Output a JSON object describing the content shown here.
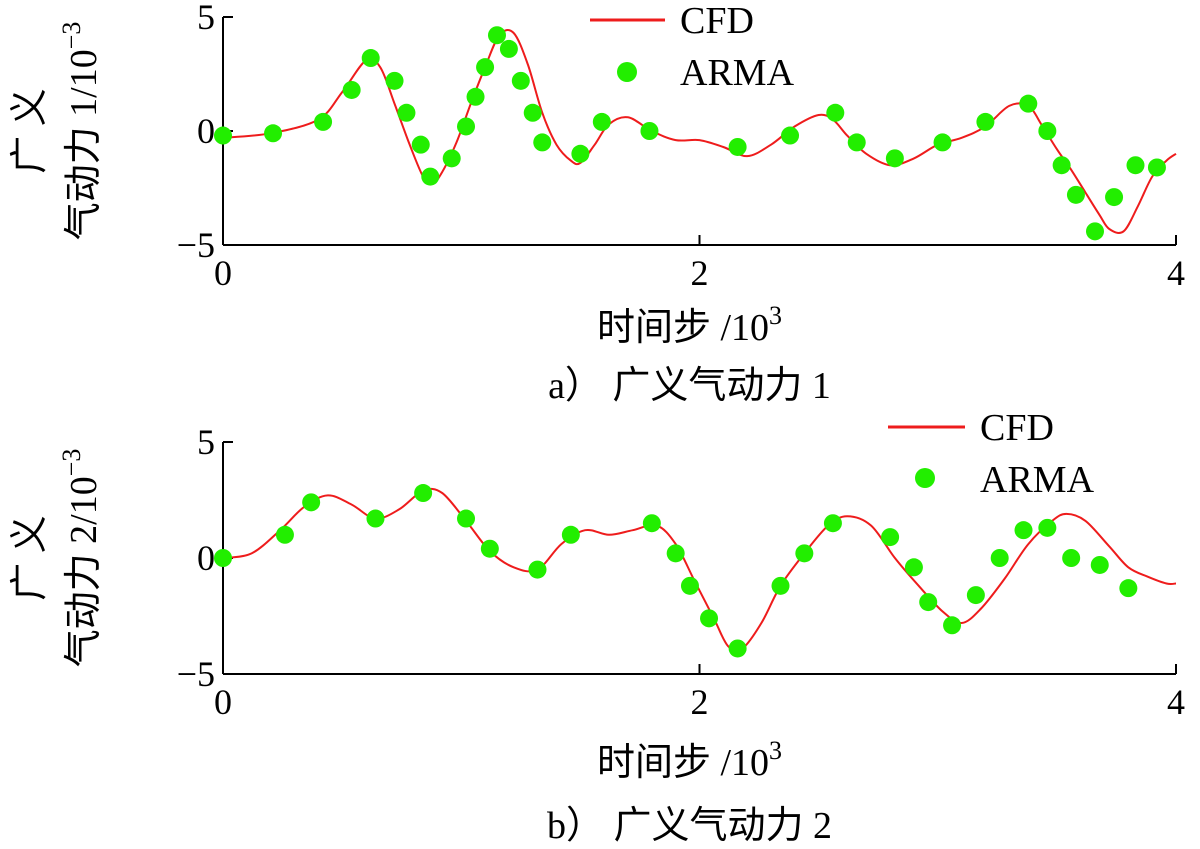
{
  "chart_data": [
    {
      "type": "line",
      "caption": "a） 广义气动力 1",
      "xlabel": "时间步 /10",
      "xlabel_exp": "3",
      "ylabel_line1": "广 义",
      "ylabel_line2": "气动力 1/10",
      "ylabel_exp": "−3",
      "xlim": [
        0,
        4
      ],
      "ylim": [
        -5,
        5
      ],
      "xticks": [
        0,
        2,
        4
      ],
      "yticks": [
        5,
        0,
        -5
      ],
      "xtick_labels": [
        "0",
        "2",
        "4"
      ],
      "ytick_labels": [
        "5",
        "0",
        "−5"
      ],
      "legend_position": "top-center",
      "series": [
        {
          "name": "CFD",
          "kind": "line",
          "x": [
            0,
            0.2,
            0.4,
            0.5,
            0.6,
            0.66,
            0.72,
            0.78,
            0.84,
            0.88,
            0.92,
            0.98,
            1.04,
            1.1,
            1.16,
            1.22,
            1.28,
            1.34,
            1.4,
            1.46,
            1.5,
            1.56,
            1.62,
            1.7,
            1.8,
            1.9,
            2.0,
            2.1,
            2.2,
            2.3,
            2.4,
            2.5,
            2.56,
            2.62,
            2.7,
            2.8,
            2.9,
            3.0,
            3.1,
            3.2,
            3.3,
            3.38,
            3.44,
            3.5,
            3.56,
            3.62,
            3.68,
            3.72,
            3.78,
            3.84,
            3.9,
            3.96,
            4.0
          ],
          "y": [
            -0.3,
            -0.1,
            0.5,
            1.7,
            3.1,
            2.8,
            1.2,
            -0.5,
            -2.0,
            -2.3,
            -1.8,
            -0.5,
            1.2,
            2.8,
            4.2,
            4.3,
            2.9,
            0.8,
            -0.6,
            -1.3,
            -1.4,
            -0.6,
            0.3,
            0.6,
            0.0,
            -0.4,
            -0.4,
            -0.7,
            -1.1,
            -0.6,
            0.2,
            0.7,
            0.5,
            -0.2,
            -1.0,
            -1.5,
            -1.2,
            -0.6,
            -0.3,
            0.2,
            1.1,
            1.1,
            0.2,
            -0.8,
            -1.7,
            -2.7,
            -3.7,
            -4.3,
            -4.4,
            -3.3,
            -2.0,
            -1.3,
            -1.0
          ]
        },
        {
          "name": "ARMA",
          "kind": "scatter",
          "x": [
            0.0,
            0.21,
            0.42,
            0.54,
            0.62,
            0.72,
            0.77,
            0.83,
            0.87,
            0.96,
            1.02,
            1.06,
            1.1,
            1.15,
            1.2,
            1.25,
            1.3,
            1.34,
            1.5,
            1.59,
            1.79,
            2.16,
            2.38,
            2.57,
            2.66,
            2.82,
            3.02,
            3.2,
            3.38,
            3.46,
            3.52,
            3.58,
            3.66,
            3.74,
            3.83,
            3.92
          ],
          "y": [
            -0.2,
            -0.1,
            0.4,
            1.8,
            3.2,
            2.2,
            0.8,
            -0.6,
            -2.0,
            -1.2,
            0.2,
            1.5,
            2.8,
            4.2,
            3.6,
            2.2,
            0.8,
            -0.5,
            -1.0,
            0.4,
            0.0,
            -0.7,
            -0.2,
            0.8,
            -0.5,
            -1.2,
            -0.5,
            0.4,
            1.2,
            0.0,
            -1.5,
            -2.8,
            -4.4,
            -2.9,
            -1.5,
            -1.6
          ]
        }
      ]
    },
    {
      "type": "line",
      "caption": "b） 广义气动力 2",
      "xlabel": "时间步 /10",
      "xlabel_exp": "3",
      "ylabel_line1": "广 义",
      "ylabel_line2": "气动力 2/10",
      "ylabel_exp": "−3",
      "xlim": [
        0,
        4
      ],
      "ylim": [
        -5,
        5
      ],
      "xticks": [
        0,
        2,
        4
      ],
      "yticks": [
        5,
        0,
        -5
      ],
      "xtick_labels": [
        "0",
        "2",
        "4"
      ],
      "ytick_labels": [
        "5",
        "0",
        "−5"
      ],
      "legend_position": "top-right",
      "series": [
        {
          "name": "CFD",
          "kind": "line",
          "x": [
            0,
            0.12,
            0.24,
            0.34,
            0.44,
            0.54,
            0.64,
            0.74,
            0.84,
            0.92,
            1.02,
            1.12,
            1.22,
            1.32,
            1.42,
            1.52,
            1.62,
            1.72,
            1.82,
            1.9,
            1.98,
            2.06,
            2.12,
            2.18,
            2.26,
            2.34,
            2.44,
            2.54,
            2.62,
            2.72,
            2.82,
            2.92,
            3.02,
            3.1,
            3.18,
            3.28,
            3.38,
            3.48,
            3.54,
            3.62,
            3.72,
            3.8,
            3.88,
            3.96,
            4.0
          ],
          "y": [
            0.0,
            0.2,
            1.2,
            2.2,
            2.7,
            2.3,
            1.7,
            2.1,
            2.9,
            2.8,
            1.6,
            0.3,
            -0.4,
            -0.5,
            0.6,
            1.2,
            1.0,
            1.2,
            1.4,
            0.6,
            -1.0,
            -2.6,
            -3.8,
            -3.9,
            -2.8,
            -1.2,
            0.2,
            1.4,
            1.8,
            1.4,
            0.0,
            -1.2,
            -2.3,
            -2.8,
            -2.2,
            -0.9,
            0.6,
            1.6,
            1.9,
            1.6,
            0.5,
            -0.4,
            -0.8,
            -1.1,
            -1.1
          ]
        },
        {
          "name": "ARMA",
          "kind": "scatter",
          "x": [
            0.0,
            0.26,
            0.37,
            0.64,
            0.84,
            1.02,
            1.12,
            1.32,
            1.46,
            1.8,
            1.9,
            1.96,
            2.04,
            2.16,
            2.34,
            2.44,
            2.56,
            2.8,
            2.9,
            2.96,
            3.06,
            3.16,
            3.26,
            3.36,
            3.46,
            3.56,
            3.68,
            3.8
          ],
          "y": [
            0.0,
            1.0,
            2.4,
            1.7,
            2.8,
            1.7,
            0.4,
            -0.5,
            1.0,
            1.5,
            0.2,
            -1.2,
            -2.6,
            -3.9,
            -1.2,
            0.2,
            1.5,
            0.9,
            -0.4,
            -1.9,
            -2.9,
            -1.6,
            0.0,
            1.2,
            1.3,
            0.0,
            -0.3,
            -1.3
          ]
        }
      ]
    }
  ],
  "colors": {
    "cfd": "#ee1c1c",
    "arma": "#22ee00",
    "axis": "#000000"
  }
}
